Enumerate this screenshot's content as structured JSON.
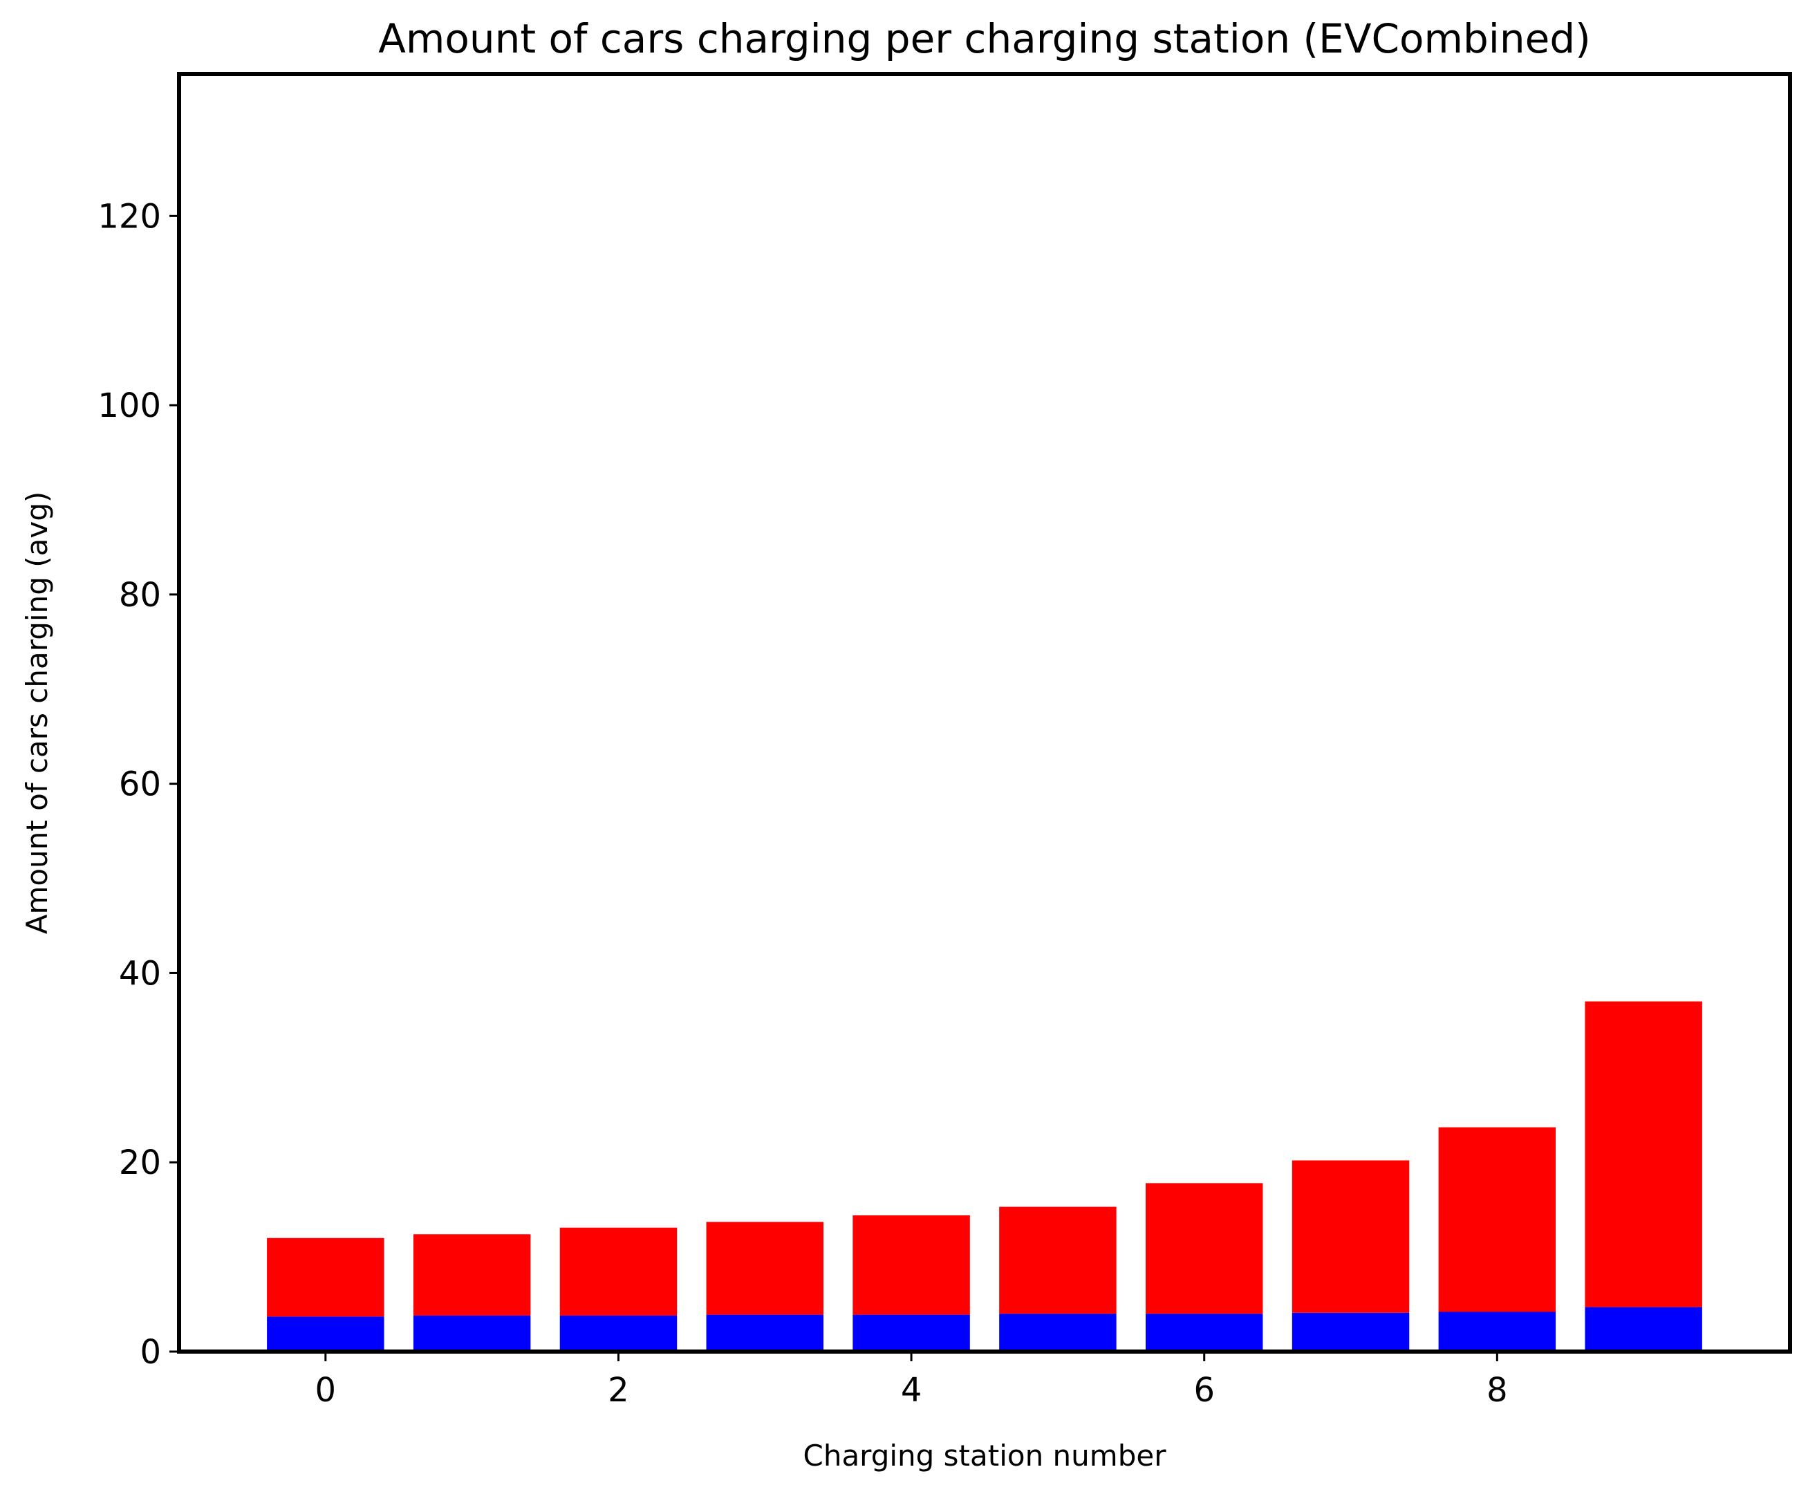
{
  "chart_data": {
    "type": "bar",
    "stacked": true,
    "title": "Amount of cars charging per charging station (EVCombined)",
    "xlabel": "Charging station number",
    "ylabel": "Amount of cars charging (avg)",
    "x": [
      0,
      1,
      2,
      3,
      4,
      5,
      6,
      7,
      8,
      9
    ],
    "xlim": [
      -1,
      10
    ],
    "ylim": [
      0,
      135
    ],
    "xticks": [
      0,
      2,
      4,
      6,
      8
    ],
    "yticks": [
      0,
      20,
      40,
      60,
      80,
      100,
      120
    ],
    "grid": false,
    "legend": "none",
    "series": [
      {
        "color": "#0000ff",
        "values": [
          3.7,
          3.8,
          3.8,
          3.9,
          3.9,
          4.0,
          4.0,
          4.1,
          4.2,
          4.7
        ]
      },
      {
        "color": "#ff0000",
        "values": [
          8.3,
          8.6,
          9.3,
          9.8,
          10.5,
          11.3,
          13.8,
          16.1,
          19.5,
          32.3
        ]
      }
    ]
  }
}
